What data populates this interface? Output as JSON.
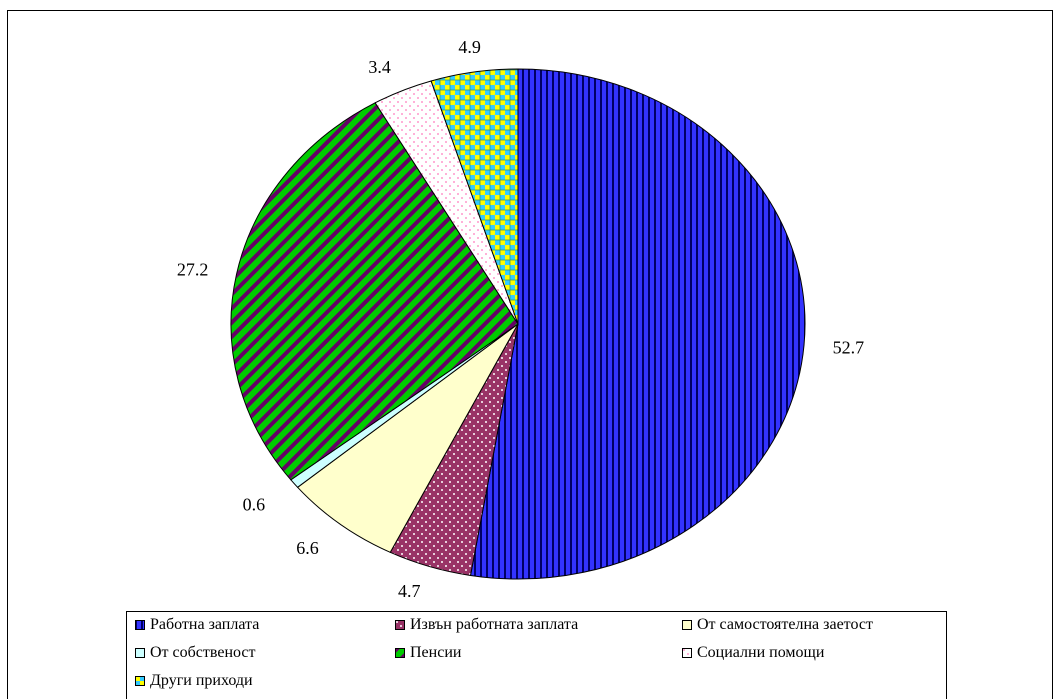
{
  "chart_data": {
    "type": "pie",
    "title": "",
    "slices": [
      {
        "label": "Работна заплата",
        "value": 52.7,
        "data_label": "52.7",
        "color": "#3333ff",
        "pattern": "vertical-stripes",
        "pattern_color": "#000066"
      },
      {
        "label": "Извън работната заплата",
        "value": 4.7,
        "data_label": "4.7",
        "color": "#993366",
        "pattern": "dots",
        "pattern_color": "#ffffff"
      },
      {
        "label": "От самостоятелна заетост",
        "value": 6.6,
        "data_label": "6.6",
        "color": "#ffffcc",
        "pattern": "solid",
        "pattern_color": "#ffffcc"
      },
      {
        "label": "От собственост",
        "value": 0.6,
        "data_label": "0.6",
        "color": "#ccffff",
        "pattern": "solid",
        "pattern_color": "#ccffff"
      },
      {
        "label": "Пенсии",
        "value": 27.2,
        "data_label": "27.2",
        "color": "#00cc00",
        "pattern": "diagonal-stripes",
        "pattern_color": "#660066"
      },
      {
        "label": "Социални помощи",
        "value": 3.4,
        "data_label": "3.4",
        "color": "#ffffff",
        "pattern": "dots",
        "pattern_color": "#ff99cc"
      },
      {
        "label": "Други приходи",
        "value": 4.9,
        "data_label": "4.9",
        "color": "#33ccff",
        "pattern": "checker",
        "pattern_color": "#ffff00"
      }
    ],
    "start": "12 o'clock",
    "direction": "clockwise",
    "legend_position": "bottom"
  }
}
